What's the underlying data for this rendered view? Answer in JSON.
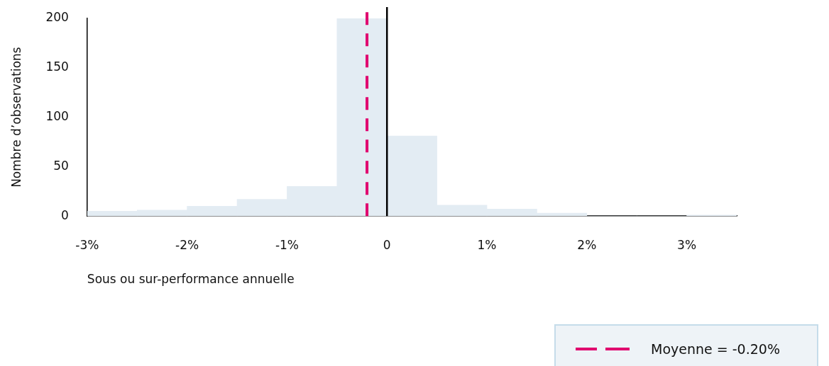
{
  "chart_data": {
    "type": "histogram",
    "xlabel": "Sous ou sur-performance annuelle",
    "ylabel": "Nombre d’observations",
    "bins": [
      -3,
      -2.5,
      -2,
      -1.5,
      -1,
      -0.5,
      0,
      0.5,
      1,
      1.5,
      2,
      2.5,
      3,
      3.5
    ],
    "values": [
      5,
      6,
      10,
      17,
      30,
      200,
      81,
      11,
      7,
      3,
      0,
      0,
      1
    ],
    "color": "#e3ecf3",
    "xlim": [
      -3,
      3.5
    ],
    "xticks": [
      {
        "value": -3,
        "label": "-3%"
      },
      {
        "value": -2,
        "label": "-2%"
      },
      {
        "value": -1,
        "label": "-1%"
      },
      0,
      {
        "value": 1,
        "label": "1%"
      },
      {
        "value": 2,
        "label": "2%"
      },
      {
        "value": 3,
        "label": "3%"
      }
    ],
    "ylim": [
      0,
      200
    ],
    "yticks": [
      0,
      50,
      100,
      150,
      200
    ],
    "ref_lines": [
      {
        "axis": "x",
        "value": -0.2,
        "label": "Moyenne = -0.20%",
        "color": "#e0006e",
        "line_style": "dashed"
      },
      {
        "axis": "x",
        "value": 0,
        "color": "#000000",
        "line_style": "solid"
      }
    ],
    "grid": false,
    "legend": "bottom right"
  }
}
